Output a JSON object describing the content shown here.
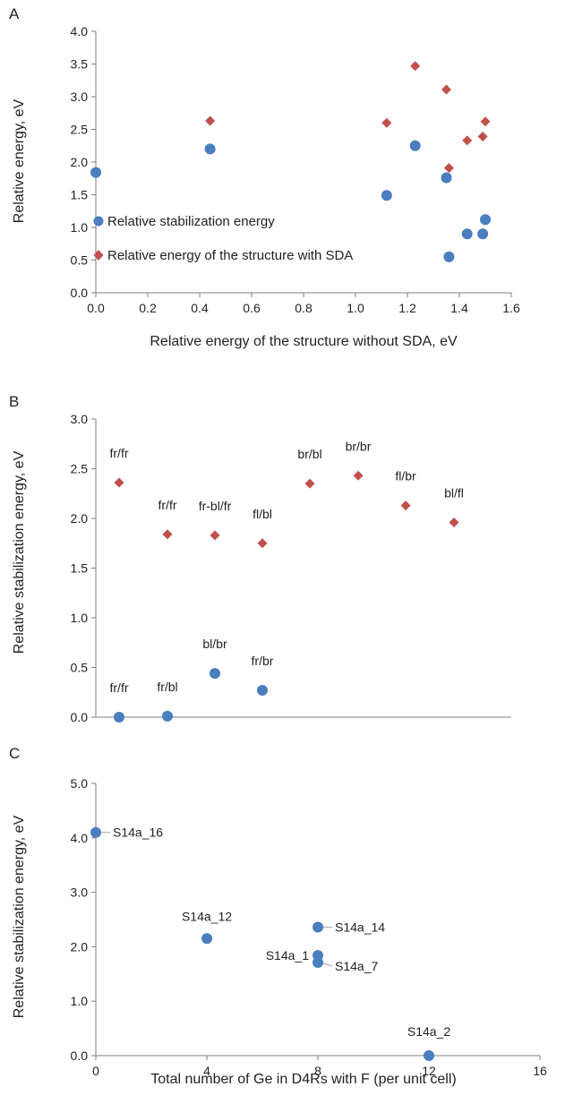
{
  "colors": {
    "blue": "#4a7ebf",
    "red": "#c0504d",
    "axis": "#7f7f7f",
    "leader": "#a6a6a6"
  },
  "chart_data": [
    {
      "panel": "A",
      "type": "scatter",
      "xlabel": "Relative energy of the structure without SDA, eV",
      "ylabel": "Relative energy, eV",
      "xlim": [
        0,
        1.6
      ],
      "ylim": [
        0,
        4.0
      ],
      "xticks": [
        "0.0",
        "0.2",
        "0.4",
        "0.6",
        "0.8",
        "1.0",
        "1.2",
        "1.4",
        "1.6"
      ],
      "yticks": [
        "0.0",
        "0.5",
        "1.0",
        "1.5",
        "2.0",
        "2.5",
        "3.0",
        "3.5",
        "4.0"
      ],
      "legend": "left",
      "series": [
        {
          "name": "Relative stabilization energy",
          "marker": "circle",
          "points": [
            [
              0,
              1.84
            ],
            [
              0.44,
              2.2
            ],
            [
              1.12,
              1.49
            ],
            [
              1.23,
              2.25
            ],
            [
              1.35,
              1.76
            ],
            [
              1.36,
              0.55
            ],
            [
              1.43,
              0.9
            ],
            [
              1.49,
              0.9
            ],
            [
              1.5,
              1.12
            ]
          ]
        },
        {
          "name": "Relative energy of the structure with SDA",
          "marker": "diamond",
          "points": [
            [
              0,
              1.84
            ],
            [
              0.44,
              2.63
            ],
            [
              1.12,
              2.6
            ],
            [
              1.23,
              3.47
            ],
            [
              1.35,
              3.11
            ],
            [
              1.36,
              1.91
            ],
            [
              1.43,
              2.33
            ],
            [
              1.49,
              2.39
            ],
            [
              1.5,
              2.62
            ]
          ]
        }
      ]
    },
    {
      "panel": "B",
      "type": "scatter",
      "ylabel": "Relative stabilization energy, eV",
      "xlim": [
        0,
        10
      ],
      "ylim": [
        0,
        3.0
      ],
      "yticks": [
        "0.0",
        "0.5",
        "1.0",
        "1.5",
        "2.0",
        "2.5",
        "3.0"
      ],
      "series": [
        {
          "marker": "circle",
          "points": [
            {
              "x": 1,
              "y": 0.0,
              "label": "fr/fr"
            },
            {
              "x": 2,
              "y": 0.01,
              "label": "fr/bl"
            },
            {
              "x": 3,
              "y": 0.44,
              "label": "bl/br"
            },
            {
              "x": 4,
              "y": 0.27,
              "label": "fr/br"
            }
          ]
        },
        {
          "marker": "diamond",
          "points": [
            {
              "x": 1,
              "y": 2.36,
              "label": "fr/fr"
            },
            {
              "x": 2,
              "y": 1.84,
              "label": "fr/fr"
            },
            {
              "x": 3,
              "y": 1.83,
              "label": "fr-bl/fr"
            },
            {
              "x": 4,
              "y": 1.75,
              "label": "fl/bl"
            },
            {
              "x": 5,
              "y": 2.35,
              "label": "br/bl"
            },
            {
              "x": 6,
              "y": 2.43,
              "label": "br/br"
            },
            {
              "x": 7,
              "y": 2.13,
              "label": "fl/br"
            },
            {
              "x": 8,
              "y": 1.96,
              "label": "bl/fl"
            }
          ]
        }
      ]
    },
    {
      "panel": "C",
      "type": "scatter",
      "xlabel": "Total number of Ge in D4Rs with F (per unit cell)",
      "ylabel": "Relative stabilization energy, eV",
      "xlim": [
        0,
        16
      ],
      "ylim": [
        0,
        5.0
      ],
      "xticks": [
        "0",
        "4",
        "8",
        "12",
        "16"
      ],
      "yticks": [
        "0.0",
        "1.0",
        "2.0",
        "3.0",
        "4.0",
        "5.0"
      ],
      "series": [
        {
          "marker": "circle",
          "points": [
            {
              "x": 0,
              "y": 4.1,
              "label": "S14a_16"
            },
            {
              "x": 4,
              "y": 2.15,
              "label": "S14a_12"
            },
            {
              "x": 8,
              "y": 2.36,
              "label": "S14a_14"
            },
            {
              "x": 8,
              "y": 1.84,
              "label": "S14a_1"
            },
            {
              "x": 8,
              "y": 1.71,
              "label": "S14a_7"
            },
            {
              "x": 12,
              "y": 0.0,
              "label": "S14a_2"
            }
          ]
        }
      ]
    }
  ]
}
